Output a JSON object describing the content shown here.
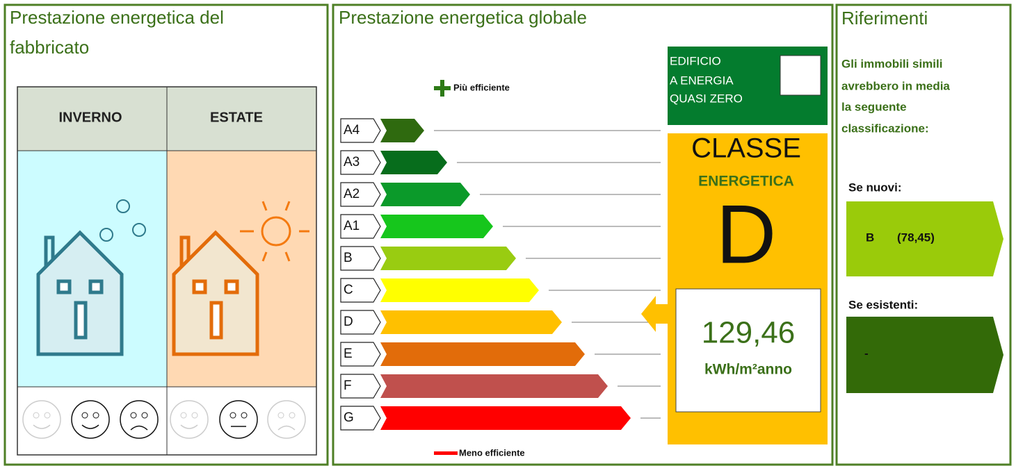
{
  "fabbricato": {
    "title": [
      "Prestazione energetica del",
      "fabbricato"
    ],
    "headers": [
      "INVERNO",
      "ESTATE"
    ]
  },
  "globale": {
    "title": "Prestazione energetica globale",
    "top_label": "Più efficiente",
    "bottom_label": "Meno efficiente",
    "classes": [
      "A4",
      "A3",
      "A2",
      "A1",
      "B",
      "C",
      "D",
      "E",
      "F",
      "G"
    ],
    "nzeb": [
      "EDIFICIO",
      "A ENERGIA",
      "QUASI ZERO"
    ],
    "class_heading": [
      "CLASSE",
      "ENERGETICA"
    ],
    "rating": "D",
    "value": "129,46",
    "unit": "kWh/m²anno"
  },
  "riferimenti": {
    "title": "Riferimenti",
    "intro": [
      "Gli immobili simili",
      "avrebbero in media",
      "la seguente",
      "classificazione:"
    ],
    "new": {
      "label": "Se nuovi:",
      "class": "B",
      "value": "(78,45)"
    },
    "existing": {
      "label": "Se esistenti:",
      "class": "-"
    }
  }
}
